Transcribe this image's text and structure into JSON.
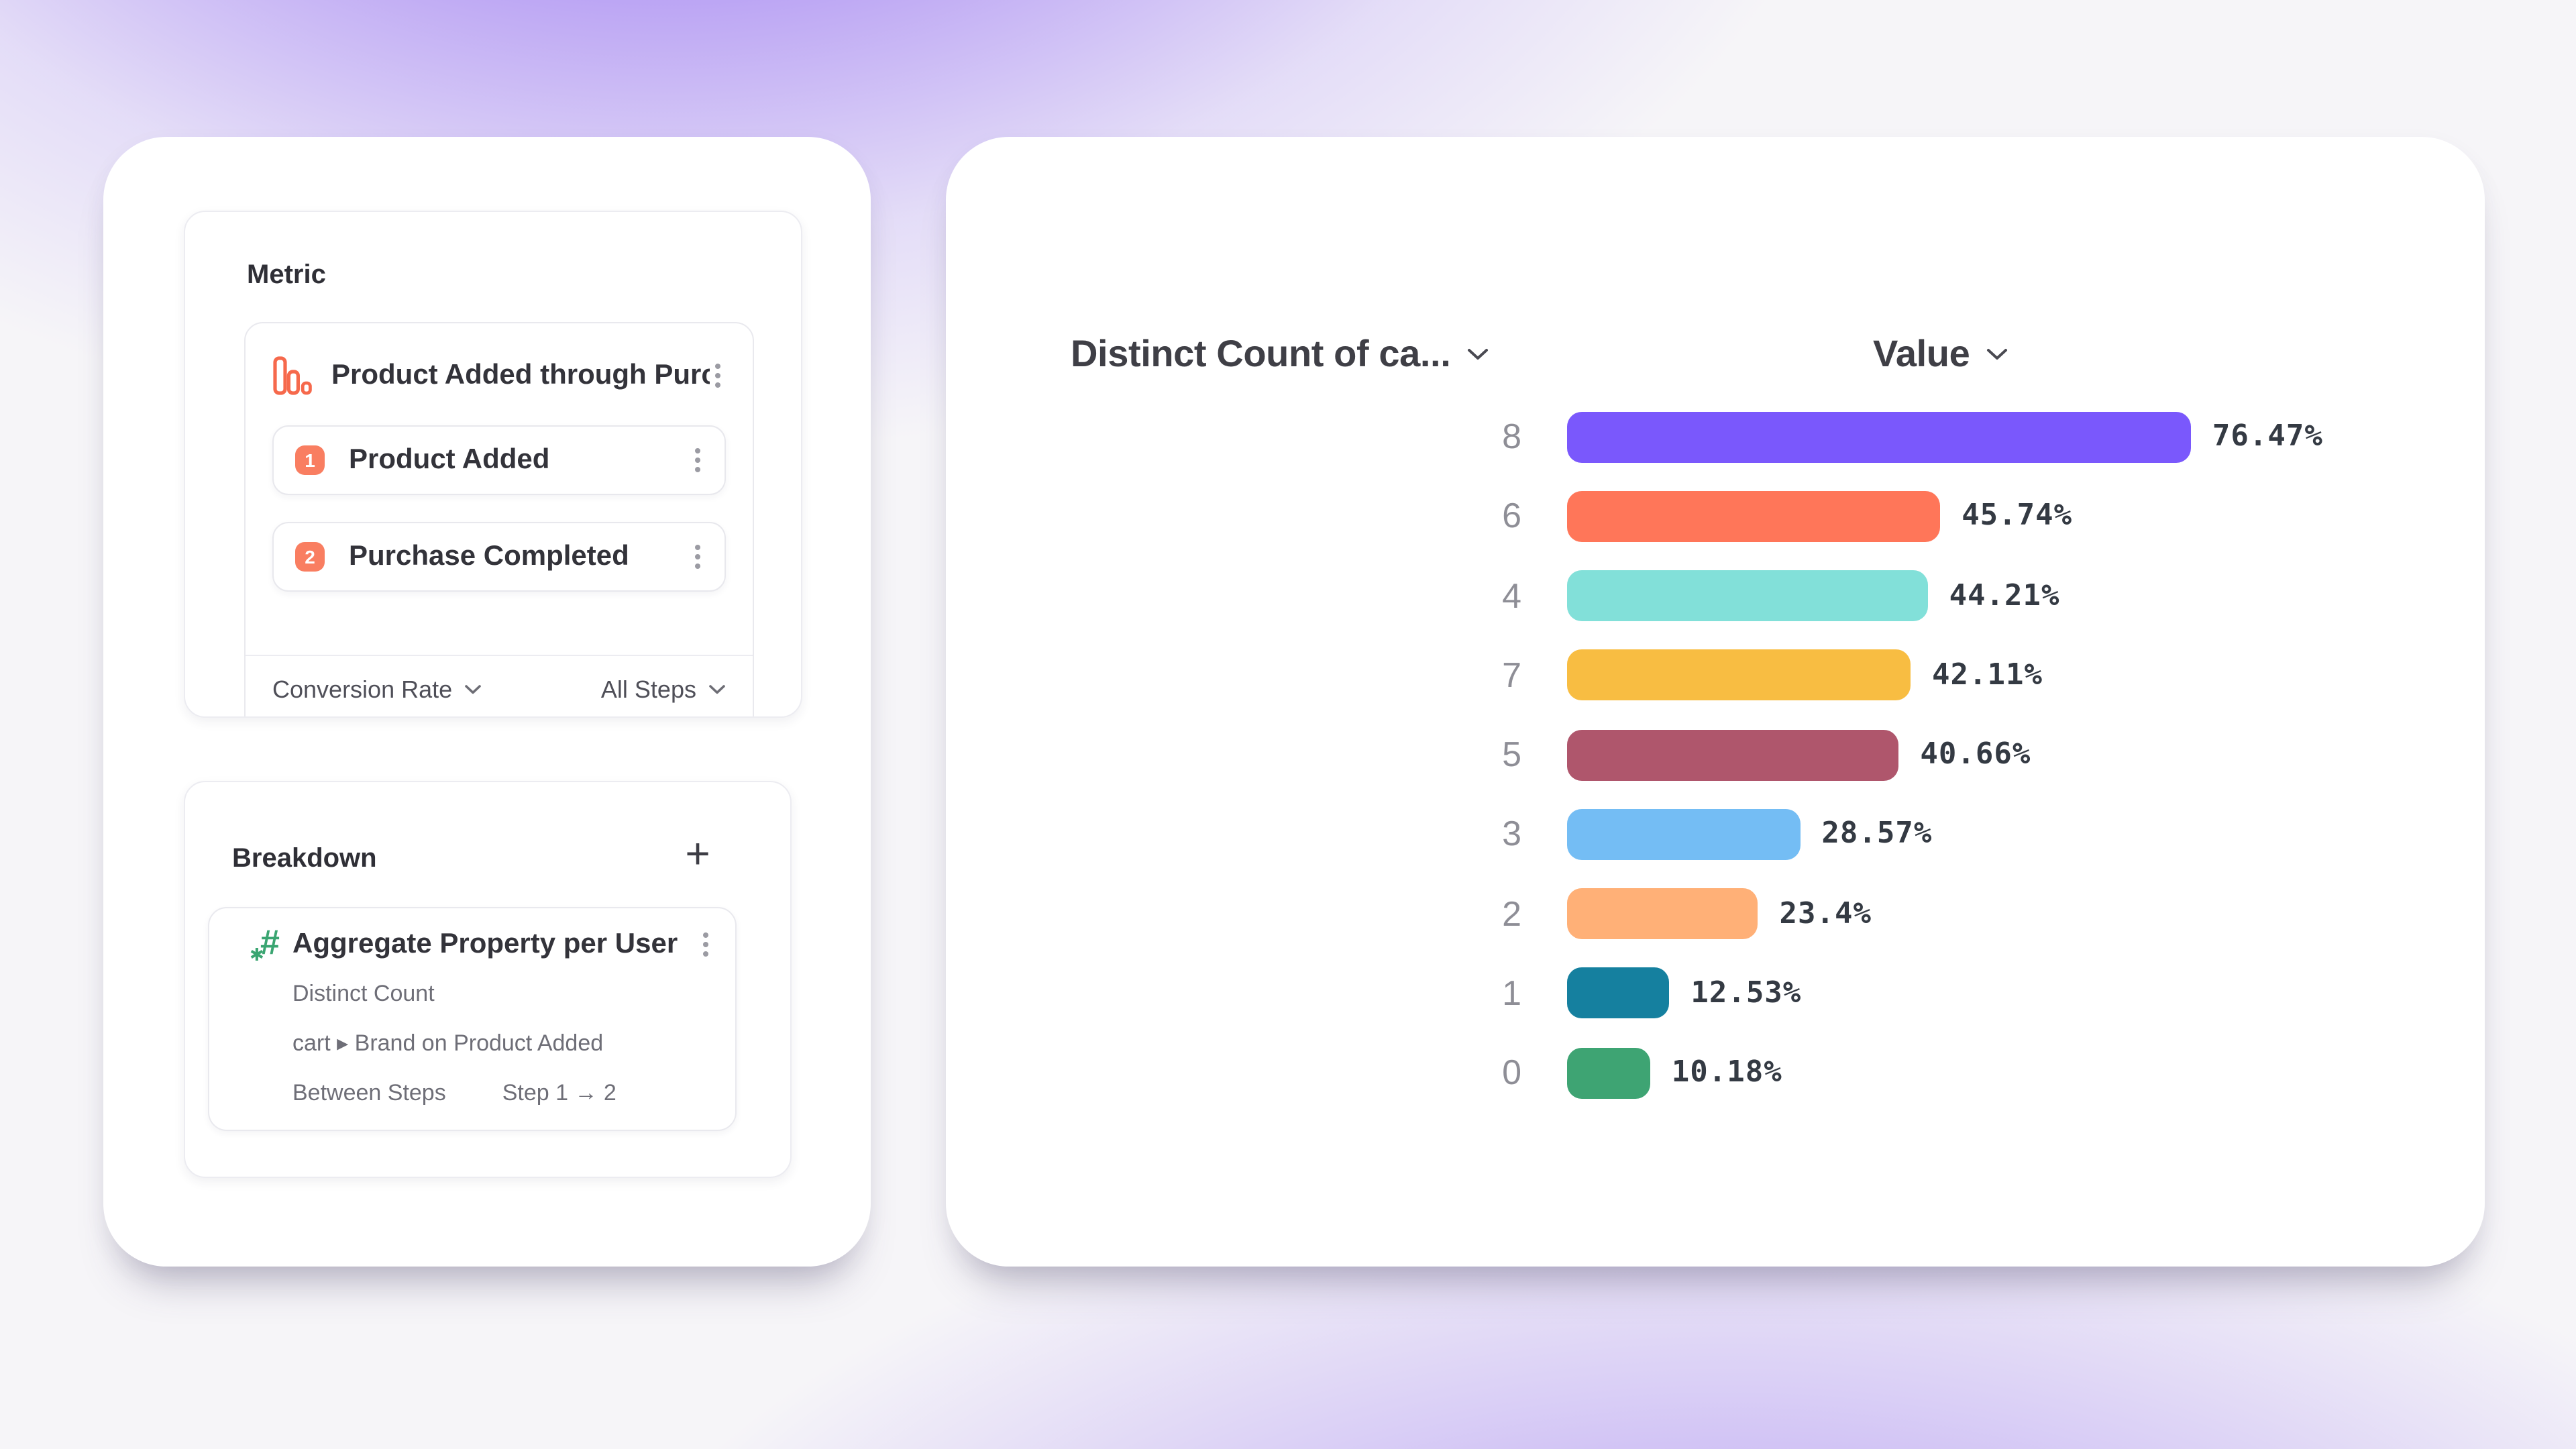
{
  "metric_panel": {
    "title": "Metric",
    "funnel": {
      "icon": "funnel-bars-icon",
      "title": "Product Added through Purcha...",
      "steps": [
        {
          "number": "1",
          "label": "Product Added"
        },
        {
          "number": "2",
          "label": "Purchase Completed"
        }
      ],
      "footer": {
        "measure_label": "Conversion Rate",
        "steps_scope_label": "All Steps"
      }
    }
  },
  "breakdown_panel": {
    "title": "Breakdown",
    "add_label": "+",
    "property": {
      "icon": "numeric-property-icon",
      "title": "Aggregate Property per User",
      "aggregation": "Distinct Count",
      "property_path": "cart ▸ Brand on Product Added",
      "between_steps_label": "Between Steps",
      "between_steps_value": "Step 1 → 2"
    }
  },
  "chart_data": {
    "type": "bar",
    "orientation": "horizontal",
    "column_headers": {
      "category": "Distinct Count of ca...",
      "value": "Value"
    },
    "categories": [
      "8",
      "6",
      "4",
      "7",
      "5",
      "3",
      "2",
      "1",
      "0"
    ],
    "values": [
      76.47,
      45.74,
      44.21,
      42.11,
      40.66,
      28.57,
      23.4,
      12.53,
      10.18
    ],
    "value_labels": [
      "76.47%",
      "45.74%",
      "44.21%",
      "42.11%",
      "40.66%",
      "28.57%",
      "23.4%",
      "12.53%",
      "10.18%"
    ],
    "bar_colors": [
      "#7a58fc",
      "#ff7659",
      "#82e0d9",
      "#f8bd42",
      "#af566c",
      "#74bdf4",
      "#ffb077",
      "#15809f",
      "#3ea473"
    ],
    "xlim": [
      0,
      100
    ],
    "legend": "none",
    "grid": "off"
  },
  "colors": {
    "accent_orange": "#f97e61",
    "icon_orange": "#f6694c",
    "icon_green": "#3aa571",
    "background_glow": "#9d7ff0"
  }
}
